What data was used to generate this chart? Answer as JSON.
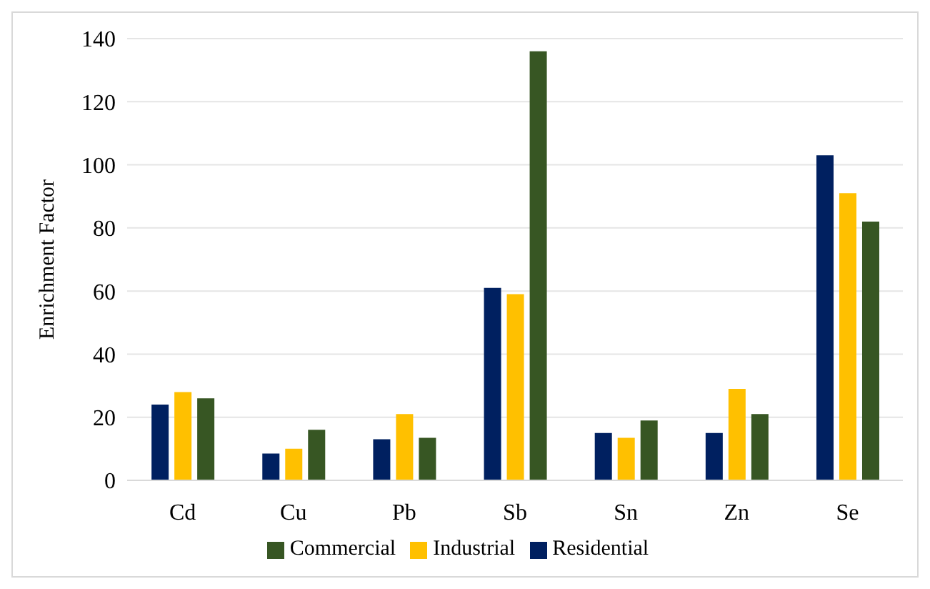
{
  "chart_data": {
    "type": "bar",
    "ylabel": "Enrichment Factor",
    "categories": [
      "Cd",
      "Cu",
      "Pb",
      "Sb",
      "Sn",
      "Zn",
      "Se"
    ],
    "series": [
      {
        "name": "Residential",
        "color": "#002060",
        "values": [
          24,
          8.5,
          13,
          61,
          15,
          15,
          103
        ]
      },
      {
        "name": "Industrial",
        "color": "#ffc000",
        "values": [
          28,
          10,
          21,
          59,
          13.5,
          29,
          91
        ]
      },
      {
        "name": "Commercial",
        "color": "#375623",
        "values": [
          26,
          16,
          13.5,
          136,
          19,
          21,
          82
        ]
      }
    ],
    "ylim": [
      0,
      140
    ],
    "yticks": [
      0,
      20,
      40,
      60,
      80,
      100,
      120,
      140
    ],
    "grid": "y",
    "legend": "bottom"
  }
}
